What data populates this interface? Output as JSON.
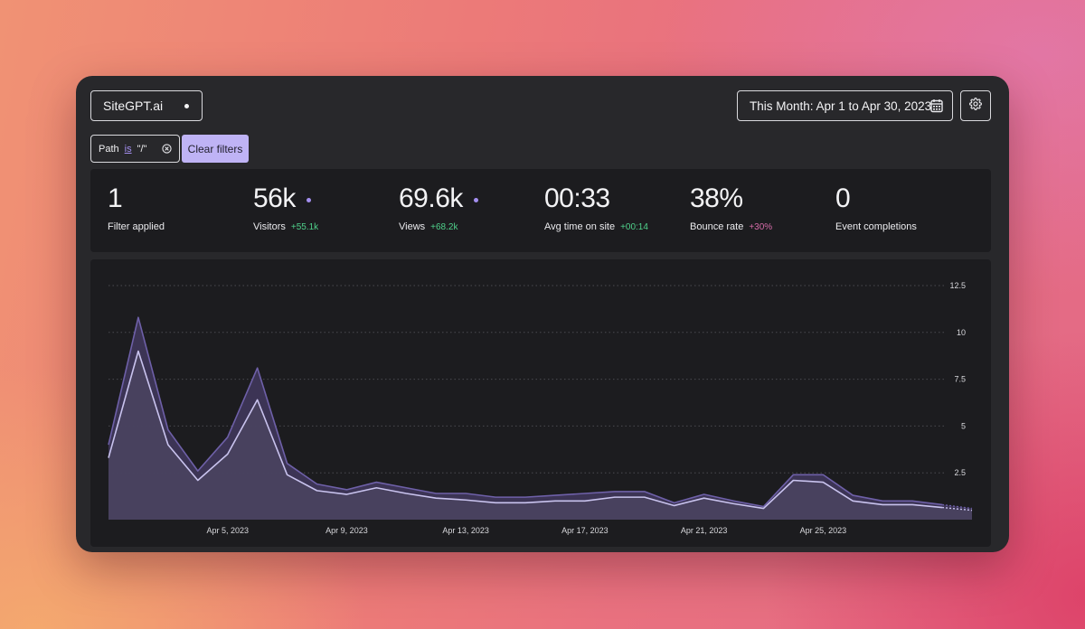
{
  "site_selector": {
    "label": "SiteGPT.ai"
  },
  "date_range": {
    "label": "This Month: Apr 1 to Apr 30, 2023"
  },
  "filter": {
    "field": "Path",
    "operator": "is",
    "value": "\"/\""
  },
  "clear_filters": {
    "label": "Clear filters"
  },
  "stats": [
    {
      "value": "1",
      "label": "Filter applied",
      "change": ""
    },
    {
      "value": "56k",
      "label": "Visitors",
      "change": "+55.1k",
      "change_color": "#4fd18b"
    },
    {
      "value": "69.6k",
      "label": "Views",
      "change": "+68.2k",
      "change_color": "#4fd18b"
    },
    {
      "value": "00:33",
      "label": "Avg time on site",
      "change": "+00:14",
      "change_color": "#4fd18b"
    },
    {
      "value": "38%",
      "label": "Bounce rate",
      "change": "+30%",
      "change_color": "#d56ba8"
    },
    {
      "value": "0",
      "label": "Event completions",
      "change": ""
    }
  ],
  "colors": {
    "accent": "#a48ff0",
    "positive": "#4fd18b",
    "negative": "#d56ba8"
  },
  "chart_data": {
    "type": "area",
    "title": "",
    "xlabel": "",
    "ylabel": "",
    "ylim": [
      0,
      12.5
    ],
    "yticks": [
      "12.5",
      "10",
      "7.5",
      "5",
      "2.5"
    ],
    "ytick_values": [
      12.5,
      10,
      7.5,
      5,
      2.5
    ],
    "x_tick_labels": [
      "Apr 5, 2023",
      "Apr 9, 2023",
      "Apr 13, 2023",
      "Apr 17, 2023",
      "Apr 21, 2023",
      "Apr 25, 2023"
    ],
    "x_tick_days": [
      5,
      9,
      13,
      17,
      21,
      25
    ],
    "x_days": [
      1,
      2,
      3,
      4,
      5,
      6,
      7,
      8,
      9,
      10,
      11,
      12,
      13,
      14,
      15,
      16,
      17,
      18,
      19,
      20,
      21,
      22,
      23,
      24,
      25,
      26,
      27,
      28,
      29,
      30
    ],
    "series": [
      {
        "name": "Views",
        "values": [
          4.0,
          10.8,
          4.8,
          2.6,
          4.4,
          8.1,
          3.0,
          1.9,
          1.6,
          2.0,
          1.7,
          1.4,
          1.4,
          1.2,
          1.2,
          1.3,
          1.4,
          1.5,
          1.5,
          0.9,
          1.35,
          1.0,
          0.7,
          2.4,
          2.4,
          1.3,
          1.0,
          1.0,
          0.8,
          0.6
        ]
      },
      {
        "name": "Visitors",
        "values": [
          3.3,
          9.0,
          4.0,
          2.1,
          3.5,
          6.4,
          2.4,
          1.55,
          1.35,
          1.7,
          1.4,
          1.15,
          1.05,
          0.9,
          0.9,
          1.0,
          1.0,
          1.2,
          1.2,
          0.75,
          1.15,
          0.85,
          0.6,
          2.1,
          2.0,
          1.0,
          0.8,
          0.8,
          0.65,
          0.5
        ]
      }
    ]
  }
}
